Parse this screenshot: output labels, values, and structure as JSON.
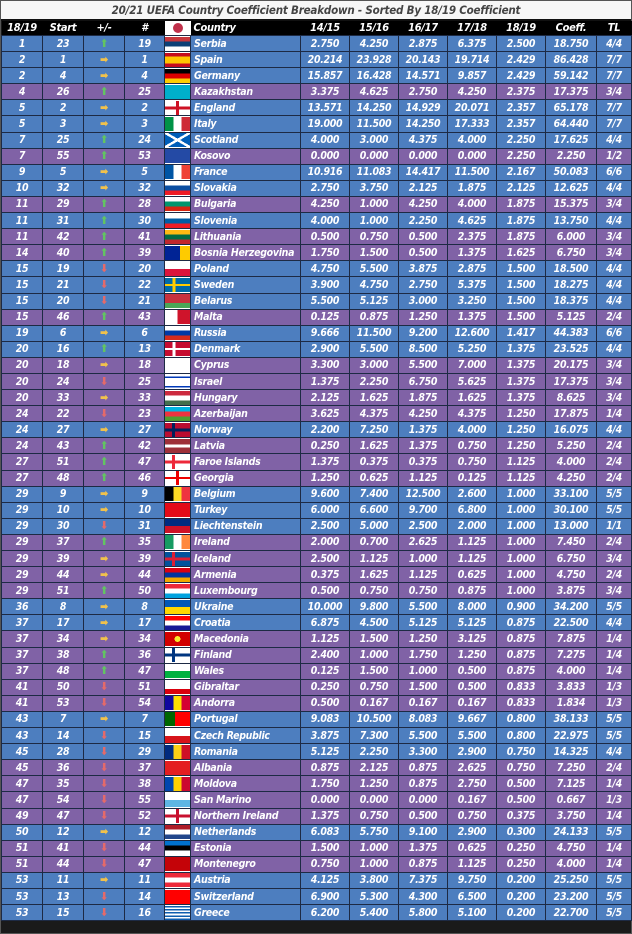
{
  "title": "20/21 UEFA Country Coefficient Breakdown - Sorted By 18/19 Coefficient",
  "headers": [
    "18/19",
    "Start",
    "+/-",
    "#",
    "",
    "Country",
    "14/15",
    "15/16",
    "16/17",
    "17/18",
    "18/19",
    "Coeff.",
    "TL"
  ],
  "colors": {
    "blue_row": "#4d7ebf",
    "purple_row": "#8062a6",
    "header": "#000000",
    "up": "#62c462",
    "same": "#f2c24b",
    "down": "#e46a6a"
  },
  "rows": [
    {
      "rank": "1",
      "start": "23",
      "move": "up",
      "num": "19",
      "country": "Serbia",
      "s1": "2.750",
      "s2": "4.250",
      "s3": "2.875",
      "s4": "6.375",
      "s5": "2.500",
      "coeff": "18.750",
      "tl": "4/4",
      "color": "blue",
      "flag": "serbia"
    },
    {
      "rank": "2",
      "start": "1",
      "move": "same",
      "num": "1",
      "country": "Spain",
      "s1": "20.214",
      "s2": "23.928",
      "s3": "20.143",
      "s4": "19.714",
      "s5": "2.429",
      "coeff": "86.428",
      "tl": "7/7",
      "color": "blue",
      "flag": "spain"
    },
    {
      "rank": "2",
      "start": "4",
      "move": "same",
      "num": "4",
      "country": "Germany",
      "s1": "15.857",
      "s2": "16.428",
      "s3": "14.571",
      "s4": "9.857",
      "s5": "2.429",
      "coeff": "59.142",
      "tl": "7/7",
      "color": "blue",
      "flag": "germany"
    },
    {
      "rank": "4",
      "start": "26",
      "move": "up",
      "num": "25",
      "country": "Kazakhstan",
      "s1": "3.375",
      "s2": "4.625",
      "s3": "2.750",
      "s4": "4.250",
      "s5": "2.375",
      "coeff": "17.375",
      "tl": "3/4",
      "color": "purple",
      "flag": "kazakhstan"
    },
    {
      "rank": "5",
      "start": "2",
      "move": "same",
      "num": "2",
      "country": "England",
      "s1": "13.571",
      "s2": "14.250",
      "s3": "14.929",
      "s4": "20.071",
      "s5": "2.357",
      "coeff": "65.178",
      "tl": "7/7",
      "color": "blue",
      "flag": "england"
    },
    {
      "rank": "5",
      "start": "3",
      "move": "same",
      "num": "3",
      "country": "Italy",
      "s1": "19.000",
      "s2": "11.500",
      "s3": "14.250",
      "s4": "17.333",
      "s5": "2.357",
      "coeff": "64.440",
      "tl": "7/7",
      "color": "blue",
      "flag": "italy"
    },
    {
      "rank": "7",
      "start": "25",
      "move": "up",
      "num": "24",
      "country": "Scotland",
      "s1": "4.000",
      "s2": "3.000",
      "s3": "4.375",
      "s4": "4.000",
      "s5": "2.250",
      "coeff": "17.625",
      "tl": "4/4",
      "color": "blue",
      "flag": "scotland"
    },
    {
      "rank": "7",
      "start": "55",
      "move": "up",
      "num": "53",
      "country": "Kosovo",
      "s1": "0.000",
      "s2": "0.000",
      "s3": "0.000",
      "s4": "0.000",
      "s5": "2.250",
      "coeff": "2.250",
      "tl": "1/2",
      "color": "purple",
      "flag": "kosovo"
    },
    {
      "rank": "9",
      "start": "5",
      "move": "same",
      "num": "5",
      "country": "France",
      "s1": "10.916",
      "s2": "11.083",
      "s3": "14.417",
      "s4": "11.500",
      "s5": "2.167",
      "coeff": "50.083",
      "tl": "6/6",
      "color": "blue",
      "flag": "france"
    },
    {
      "rank": "10",
      "start": "32",
      "move": "same",
      "num": "32",
      "country": "Slovakia",
      "s1": "2.750",
      "s2": "3.750",
      "s3": "2.125",
      "s4": "1.875",
      "s5": "2.125",
      "coeff": "12.625",
      "tl": "4/4",
      "color": "blue",
      "flag": "slovakia"
    },
    {
      "rank": "11",
      "start": "29",
      "move": "up",
      "num": "28",
      "country": "Bulgaria",
      "s1": "4.250",
      "s2": "1.000",
      "s3": "4.250",
      "s4": "4.000",
      "s5": "1.875",
      "coeff": "15.375",
      "tl": "3/4",
      "color": "purple",
      "flag": "bulgaria"
    },
    {
      "rank": "11",
      "start": "31",
      "move": "up",
      "num": "30",
      "country": "Slovenia",
      "s1": "4.000",
      "s2": "1.000",
      "s3": "2.250",
      "s4": "4.625",
      "s5": "1.875",
      "coeff": "13.750",
      "tl": "4/4",
      "color": "blue",
      "flag": "slovenia"
    },
    {
      "rank": "11",
      "start": "42",
      "move": "up",
      "num": "41",
      "country": "Lithuania",
      "s1": "0.500",
      "s2": "0.750",
      "s3": "0.500",
      "s4": "2.375",
      "s5": "1.875",
      "coeff": "6.000",
      "tl": "3/4",
      "color": "purple",
      "flag": "lithuania"
    },
    {
      "rank": "14",
      "start": "40",
      "move": "up",
      "num": "39",
      "country": "Bosnia Herzegovina",
      "s1": "1.750",
      "s2": "1.500",
      "s3": "0.500",
      "s4": "1.375",
      "s5": "1.625",
      "coeff": "6.750",
      "tl": "3/4",
      "color": "purple",
      "flag": "bosnia"
    },
    {
      "rank": "15",
      "start": "19",
      "move": "down",
      "num": "20",
      "country": "Poland",
      "s1": "4.750",
      "s2": "5.500",
      "s3": "3.875",
      "s4": "2.875",
      "s5": "1.500",
      "coeff": "18.500",
      "tl": "4/4",
      "color": "blue",
      "flag": "poland"
    },
    {
      "rank": "15",
      "start": "21",
      "move": "down",
      "num": "22",
      "country": "Sweden",
      "s1": "3.900",
      "s2": "4.750",
      "s3": "2.750",
      "s4": "5.375",
      "s5": "1.500",
      "coeff": "18.275",
      "tl": "4/4",
      "color": "blue",
      "flag": "sweden"
    },
    {
      "rank": "15",
      "start": "20",
      "move": "down",
      "num": "21",
      "country": "Belarus",
      "s1": "5.500",
      "s2": "5.125",
      "s3": "3.000",
      "s4": "3.250",
      "s5": "1.500",
      "coeff": "18.375",
      "tl": "4/4",
      "color": "blue",
      "flag": "belarus"
    },
    {
      "rank": "15",
      "start": "46",
      "move": "up",
      "num": "43",
      "country": "Malta",
      "s1": "0.125",
      "s2": "0.875",
      "s3": "1.250",
      "s4": "1.375",
      "s5": "1.500",
      "coeff": "5.125",
      "tl": "2/4",
      "color": "purple",
      "flag": "malta"
    },
    {
      "rank": "19",
      "start": "6",
      "move": "same",
      "num": "6",
      "country": "Russia",
      "s1": "9.666",
      "s2": "11.500",
      "s3": "9.200",
      "s4": "12.600",
      "s5": "1.417",
      "coeff": "44.383",
      "tl": "6/6",
      "color": "blue",
      "flag": "russia"
    },
    {
      "rank": "20",
      "start": "16",
      "move": "up",
      "num": "13",
      "country": "Denmark",
      "s1": "2.900",
      "s2": "5.500",
      "s3": "8.500",
      "s4": "5.250",
      "s5": "1.375",
      "coeff": "23.525",
      "tl": "4/4",
      "color": "blue",
      "flag": "denmark"
    },
    {
      "rank": "20",
      "start": "18",
      "move": "same",
      "num": "18",
      "country": "Cyprus",
      "s1": "3.300",
      "s2": "3.000",
      "s3": "5.500",
      "s4": "7.000",
      "s5": "1.375",
      "coeff": "20.175",
      "tl": "3/4",
      "color": "purple",
      "flag": "cyprus"
    },
    {
      "rank": "20",
      "start": "24",
      "move": "down",
      "num": "25",
      "country": "Israel",
      "s1": "1.375",
      "s2": "2.250",
      "s3": "6.750",
      "s4": "5.625",
      "s5": "1.375",
      "coeff": "17.375",
      "tl": "3/4",
      "color": "purple",
      "flag": "israel"
    },
    {
      "rank": "20",
      "start": "33",
      "move": "same",
      "num": "33",
      "country": "Hungary",
      "s1": "2.125",
      "s2": "1.625",
      "s3": "1.875",
      "s4": "1.625",
      "s5": "1.375",
      "coeff": "8.625",
      "tl": "3/4",
      "color": "purple",
      "flag": "hungary"
    },
    {
      "rank": "24",
      "start": "22",
      "move": "down",
      "num": "23",
      "country": "Azerbaijan",
      "s1": "3.625",
      "s2": "4.375",
      "s3": "4.250",
      "s4": "4.375",
      "s5": "1.250",
      "coeff": "17.875",
      "tl": "1/4",
      "color": "purple",
      "flag": "azerbaijan"
    },
    {
      "rank": "24",
      "start": "27",
      "move": "same",
      "num": "27",
      "country": "Norway",
      "s1": "2.200",
      "s2": "7.250",
      "s3": "1.375",
      "s4": "4.000",
      "s5": "1.250",
      "coeff": "16.075",
      "tl": "4/4",
      "color": "blue",
      "flag": "norway"
    },
    {
      "rank": "24",
      "start": "43",
      "move": "up",
      "num": "42",
      "country": "Latvia",
      "s1": "0.250",
      "s2": "1.625",
      "s3": "1.375",
      "s4": "0.750",
      "s5": "1.250",
      "coeff": "5.250",
      "tl": "2/4",
      "color": "purple",
      "flag": "latvia"
    },
    {
      "rank": "27",
      "start": "51",
      "move": "up",
      "num": "47",
      "country": "Faroe Islands",
      "s1": "1.375",
      "s2": "0.375",
      "s3": "0.375",
      "s4": "0.750",
      "s5": "1.125",
      "coeff": "4.000",
      "tl": "2/4",
      "color": "purple",
      "flag": "faroe"
    },
    {
      "rank": "27",
      "start": "48",
      "move": "up",
      "num": "46",
      "country": "Georgia",
      "s1": "1.250",
      "s2": "0.625",
      "s3": "1.125",
      "s4": "0.125",
      "s5": "1.125",
      "coeff": "4.250",
      "tl": "2/4",
      "color": "purple",
      "flag": "georgia"
    },
    {
      "rank": "29",
      "start": "9",
      "move": "same",
      "num": "9",
      "country": "Belgium",
      "s1": "9.600",
      "s2": "7.400",
      "s3": "12.500",
      "s4": "2.600",
      "s5": "1.000",
      "coeff": "33.100",
      "tl": "5/5",
      "color": "blue",
      "flag": "belgium"
    },
    {
      "rank": "29",
      "start": "10",
      "move": "same",
      "num": "10",
      "country": "Turkey",
      "s1": "6.000",
      "s2": "6.600",
      "s3": "9.700",
      "s4": "6.800",
      "s5": "1.000",
      "coeff": "30.100",
      "tl": "5/5",
      "color": "blue",
      "flag": "turkey"
    },
    {
      "rank": "29",
      "start": "30",
      "move": "down",
      "num": "31",
      "country": "Liechtenstein",
      "s1": "2.500",
      "s2": "5.000",
      "s3": "2.500",
      "s4": "2.000",
      "s5": "1.000",
      "coeff": "13.000",
      "tl": "1/1",
      "color": "blue",
      "flag": "liechtenstein"
    },
    {
      "rank": "29",
      "start": "37",
      "move": "up",
      "num": "35",
      "country": "Ireland",
      "s1": "2.000",
      "s2": "0.700",
      "s3": "2.625",
      "s4": "1.125",
      "s5": "1.000",
      "coeff": "7.450",
      "tl": "2/4",
      "color": "purple",
      "flag": "ireland"
    },
    {
      "rank": "29",
      "start": "39",
      "move": "same",
      "num": "39",
      "country": "Iceland",
      "s1": "2.500",
      "s2": "1.125",
      "s3": "1.000",
      "s4": "1.125",
      "s5": "1.000",
      "coeff": "6.750",
      "tl": "3/4",
      "color": "purple",
      "flag": "iceland"
    },
    {
      "rank": "29",
      "start": "44",
      "move": "same",
      "num": "44",
      "country": "Armenia",
      "s1": "0.375",
      "s2": "1.625",
      "s3": "1.125",
      "s4": "0.625",
      "s5": "1.000",
      "coeff": "4.750",
      "tl": "2/4",
      "color": "purple",
      "flag": "armenia"
    },
    {
      "rank": "29",
      "start": "51",
      "move": "up",
      "num": "50",
      "country": "Luxembourg",
      "s1": "0.500",
      "s2": "0.750",
      "s3": "0.750",
      "s4": "0.875",
      "s5": "1.000",
      "coeff": "3.875",
      "tl": "3/4",
      "color": "purple",
      "flag": "luxembourg"
    },
    {
      "rank": "36",
      "start": "8",
      "move": "same",
      "num": "8",
      "country": "Ukraine",
      "s1": "10.000",
      "s2": "9.800",
      "s3": "5.500",
      "s4": "8.000",
      "s5": "0.900",
      "coeff": "34.200",
      "tl": "5/5",
      "color": "blue",
      "flag": "ukraine"
    },
    {
      "rank": "37",
      "start": "17",
      "move": "same",
      "num": "17",
      "country": "Croatia",
      "s1": "6.875",
      "s2": "4.500",
      "s3": "5.125",
      "s4": "5.125",
      "s5": "0.875",
      "coeff": "22.500",
      "tl": "4/4",
      "color": "blue",
      "flag": "croatia"
    },
    {
      "rank": "37",
      "start": "34",
      "move": "same",
      "num": "34",
      "country": "Macedonia",
      "s1": "1.125",
      "s2": "1.500",
      "s3": "1.250",
      "s4": "3.125",
      "s5": "0.875",
      "coeff": "7.875",
      "tl": "1/4",
      "color": "purple",
      "flag": "macedonia"
    },
    {
      "rank": "37",
      "start": "38",
      "move": "up",
      "num": "36",
      "country": "Finland",
      "s1": "2.400",
      "s2": "1.000",
      "s3": "1.750",
      "s4": "1.250",
      "s5": "0.875",
      "coeff": "7.275",
      "tl": "1/4",
      "color": "purple",
      "flag": "finland"
    },
    {
      "rank": "37",
      "start": "48",
      "move": "up",
      "num": "47",
      "country": "Wales",
      "s1": "0.125",
      "s2": "1.500",
      "s3": "1.000",
      "s4": "0.500",
      "s5": "0.875",
      "coeff": "4.000",
      "tl": "1/4",
      "color": "purple",
      "flag": "wales"
    },
    {
      "rank": "41",
      "start": "50",
      "move": "down",
      "num": "51",
      "country": "Gibraltar",
      "s1": "0.250",
      "s2": "0.750",
      "s3": "1.500",
      "s4": "0.500",
      "s5": "0.833",
      "coeff": "3.833",
      "tl": "1/3",
      "color": "purple",
      "flag": "gibraltar"
    },
    {
      "rank": "41",
      "start": "53",
      "move": "down",
      "num": "54",
      "country": "Andorra",
      "s1": "0.500",
      "s2": "0.167",
      "s3": "0.167",
      "s4": "0.167",
      "s5": "0.833",
      "coeff": "1.834",
      "tl": "1/3",
      "color": "purple",
      "flag": "andorra"
    },
    {
      "rank": "43",
      "start": "7",
      "move": "same",
      "num": "7",
      "country": "Portugal",
      "s1": "9.083",
      "s2": "10.500",
      "s3": "8.083",
      "s4": "9.667",
      "s5": "0.800",
      "coeff": "38.133",
      "tl": "5/5",
      "color": "blue",
      "flag": "portugal"
    },
    {
      "rank": "43",
      "start": "14",
      "move": "down",
      "num": "15",
      "country": "Czech Republic",
      "s1": "3.875",
      "s2": "7.300",
      "s3": "5.500",
      "s4": "5.500",
      "s5": "0.800",
      "coeff": "22.975",
      "tl": "5/5",
      "color": "blue",
      "flag": "czech"
    },
    {
      "rank": "45",
      "start": "28",
      "move": "down",
      "num": "29",
      "country": "Romania",
      "s1": "5.125",
      "s2": "2.250",
      "s3": "3.300",
      "s4": "2.900",
      "s5": "0.750",
      "coeff": "14.325",
      "tl": "4/4",
      "color": "blue",
      "flag": "romania"
    },
    {
      "rank": "45",
      "start": "36",
      "move": "down",
      "num": "37",
      "country": "Albania",
      "s1": "0.875",
      "s2": "2.125",
      "s3": "0.875",
      "s4": "2.625",
      "s5": "0.750",
      "coeff": "7.250",
      "tl": "2/4",
      "color": "purple",
      "flag": "albania"
    },
    {
      "rank": "47",
      "start": "35",
      "move": "down",
      "num": "38",
      "country": "Moldova",
      "s1": "1.750",
      "s2": "1.250",
      "s3": "0.875",
      "s4": "2.750",
      "s5": "0.500",
      "coeff": "7.125",
      "tl": "1/4",
      "color": "purple",
      "flag": "moldova"
    },
    {
      "rank": "47",
      "start": "54",
      "move": "down",
      "num": "55",
      "country": "San Marino",
      "s1": "0.000",
      "s2": "0.000",
      "s3": "0.000",
      "s4": "0.167",
      "s5": "0.500",
      "coeff": "0.667",
      "tl": "1/3",
      "color": "purple",
      "flag": "sanmarino"
    },
    {
      "rank": "49",
      "start": "47",
      "move": "down",
      "num": "52",
      "country": "Northern Ireland",
      "s1": "1.375",
      "s2": "0.750",
      "s3": "0.500",
      "s4": "0.750",
      "s5": "0.375",
      "coeff": "3.750",
      "tl": "1/4",
      "color": "purple",
      "flag": "nireland"
    },
    {
      "rank": "50",
      "start": "12",
      "move": "same",
      "num": "12",
      "country": "Netherlands",
      "s1": "6.083",
      "s2": "5.750",
      "s3": "9.100",
      "s4": "2.900",
      "s5": "0.300",
      "coeff": "24.133",
      "tl": "5/5",
      "color": "blue",
      "flag": "netherlands"
    },
    {
      "rank": "51",
      "start": "41",
      "move": "down",
      "num": "44",
      "country": "Estonia",
      "s1": "1.500",
      "s2": "1.000",
      "s3": "1.375",
      "s4": "0.625",
      "s5": "0.250",
      "coeff": "4.750",
      "tl": "1/4",
      "color": "purple",
      "flag": "estonia"
    },
    {
      "rank": "51",
      "start": "44",
      "move": "down",
      "num": "47",
      "country": "Montenegro",
      "s1": "0.750",
      "s2": "1.000",
      "s3": "0.875",
      "s4": "1.125",
      "s5": "0.250",
      "coeff": "4.000",
      "tl": "1/4",
      "color": "purple",
      "flag": "montenegro"
    },
    {
      "rank": "53",
      "start": "11",
      "move": "same",
      "num": "11",
      "country": "Austria",
      "s1": "4.125",
      "s2": "3.800",
      "s3": "7.375",
      "s4": "9.750",
      "s5": "0.200",
      "coeff": "25.250",
      "tl": "5/5",
      "color": "blue",
      "flag": "austria"
    },
    {
      "rank": "53",
      "start": "13",
      "move": "down",
      "num": "14",
      "country": "Switzerland",
      "s1": "6.900",
      "s2": "5.300",
      "s3": "4.300",
      "s4": "6.500",
      "s5": "0.200",
      "coeff": "23.200",
      "tl": "5/5",
      "color": "blue",
      "flag": "switzerland"
    },
    {
      "rank": "53",
      "start": "15",
      "move": "down",
      "num": "16",
      "country": "Greece",
      "s1": "6.200",
      "s2": "5.400",
      "s3": "5.800",
      "s4": "5.100",
      "s5": "0.200",
      "coeff": "22.700",
      "tl": "5/5",
      "color": "blue",
      "flag": "greece"
    }
  ]
}
